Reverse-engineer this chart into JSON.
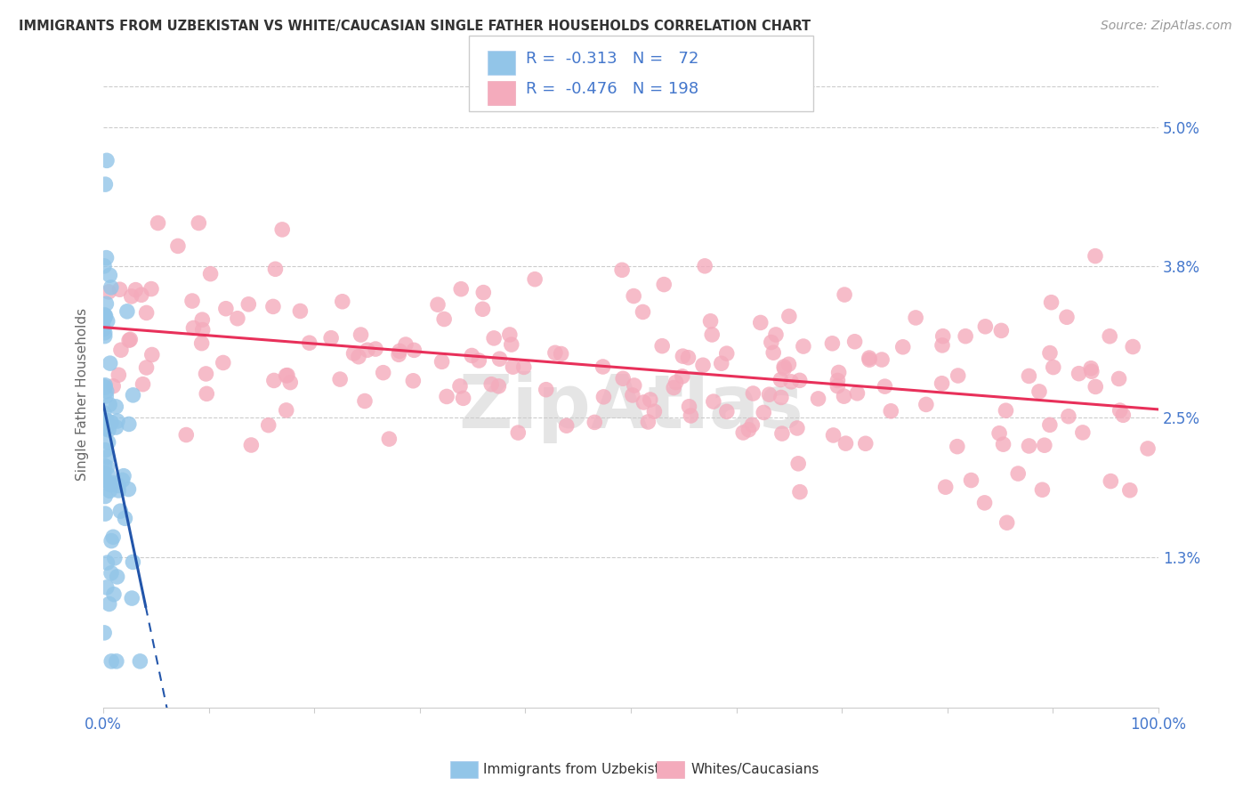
{
  "title": "IMMIGRANTS FROM UZBEKISTAN VS WHITE/CAUCASIAN SINGLE FATHER HOUSEHOLDS CORRELATION CHART",
  "source": "Source: ZipAtlas.com",
  "ylabel": "Single Father Households",
  "ytick_labels": [
    "1.3%",
    "2.5%",
    "3.8%",
    "5.0%"
  ],
  "ytick_values": [
    0.013,
    0.025,
    0.038,
    0.05
  ],
  "ymin": 0.0,
  "ymax": 0.054,
  "xmin": 0.0,
  "xmax": 1.0,
  "legend": {
    "blue_R": "-0.313",
    "blue_N": "72",
    "pink_R": "-0.476",
    "pink_N": "198"
  },
  "blue_color": "#92C5E8",
  "pink_color": "#F4ABBC",
  "blue_line_color": "#2255AA",
  "pink_line_color": "#E8305A",
  "watermark": "ZipAtlas",
  "background_color": "#FFFFFF",
  "grid_color": "#CCCCCC",
  "title_color": "#333333",
  "axis_label_color": "#4477CC",
  "seed": 42,
  "n_blue": 72,
  "n_pink": 198,
  "blue_R": -0.313,
  "pink_R": -0.476
}
